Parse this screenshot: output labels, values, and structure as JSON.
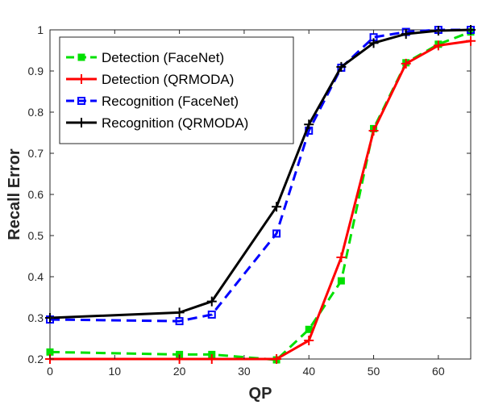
{
  "chart_data": {
    "type": "line",
    "xlabel": "QP",
    "ylabel": "Recall Error",
    "xlim": [
      0,
      65
    ],
    "ylim": [
      0.2,
      1
    ],
    "xticks": [
      0,
      10,
      20,
      30,
      40,
      50,
      60
    ],
    "yticks": [
      0.2,
      0.3,
      0.4,
      0.5,
      0.6,
      0.7,
      0.8,
      0.9,
      1
    ],
    "ytick_labels": [
      "0.2",
      "0.3",
      "0.4",
      "0.5",
      "0.6",
      "0.7",
      "0.8",
      "0.9",
      "1"
    ],
    "grid": false,
    "legend_position": "top-left",
    "series": [
      {
        "name": "Detection (FaceNet)",
        "color": "#00e000",
        "line_style": "dashed",
        "marker": "square-filled",
        "x": [
          0,
          20,
          25,
          35,
          40,
          45,
          50,
          55,
          60,
          65
        ],
        "y": [
          0.217,
          0.211,
          0.211,
          0.198,
          0.272,
          0.39,
          0.76,
          0.92,
          0.965,
          0.995
        ]
      },
      {
        "name": "Detection (QRMODA)",
        "color": "#ff0000",
        "line_style": "solid",
        "marker": "plus",
        "x": [
          0,
          20,
          25,
          35,
          40,
          45,
          50,
          55,
          60,
          65
        ],
        "y": [
          0.2,
          0.2,
          0.2,
          0.2,
          0.245,
          0.447,
          0.755,
          0.918,
          0.962,
          0.973
        ]
      },
      {
        "name": "Recognition (FaceNet)",
        "color": "#0000ff",
        "line_style": "dashed",
        "marker": "square-open",
        "x": [
          0,
          20,
          25,
          35,
          40,
          45,
          50,
          55,
          60,
          65
        ],
        "y": [
          0.296,
          0.292,
          0.308,
          0.505,
          0.755,
          0.908,
          0.982,
          0.995,
          1.0,
          1.0
        ]
      },
      {
        "name": "Recognition (QRMODA)",
        "color": "#000000",
        "line_style": "solid",
        "marker": "plus",
        "x": [
          0,
          20,
          25,
          35,
          40,
          45,
          50,
          55,
          60,
          65
        ],
        "y": [
          0.3,
          0.313,
          0.34,
          0.57,
          0.77,
          0.91,
          0.968,
          0.99,
          0.998,
          1.0
        ]
      }
    ]
  }
}
